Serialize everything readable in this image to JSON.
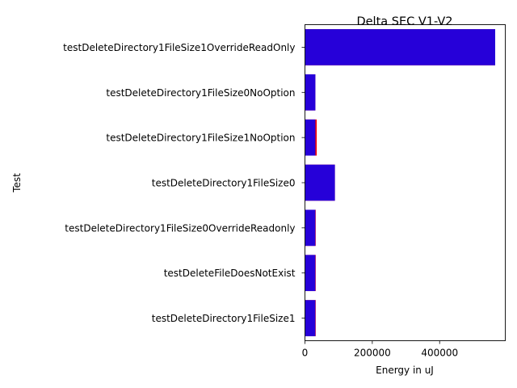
{
  "chart_data": {
    "type": "bar",
    "orientation": "horizontal",
    "title": "Delta SEC V1-V2",
    "xlabel": "Energy in uJ",
    "ylabel": "Test",
    "categories": [
      "testDeleteDirectory1FileSize1OverrideReadOnly",
      "testDeleteDirectory1FileSize0NoOption",
      "testDeleteDirectory1FileSize1NoOption",
      "testDeleteDirectory1FileSize0",
      "testDeleteDirectory1FileSize0OverrideReadonly",
      "testDeleteFileDoesNotExist",
      "testDeleteDirectory1FileSize1"
    ],
    "series": [
      {
        "color": "#ff0000",
        "values": [
          565000,
          31000,
          35000,
          89000,
          32000,
          32000,
          32000
        ]
      },
      {
        "color": "#0000ff",
        "opacity": 0.85,
        "values": [
          565000,
          31000,
          31000,
          89000,
          31000,
          31000,
          31000
        ]
      }
    ],
    "xlim": [
      0,
      595000
    ],
    "xticks": [
      0,
      200000,
      400000
    ],
    "xtick_labels": [
      "0",
      "200000",
      "400000"
    ],
    "grid": false
  }
}
